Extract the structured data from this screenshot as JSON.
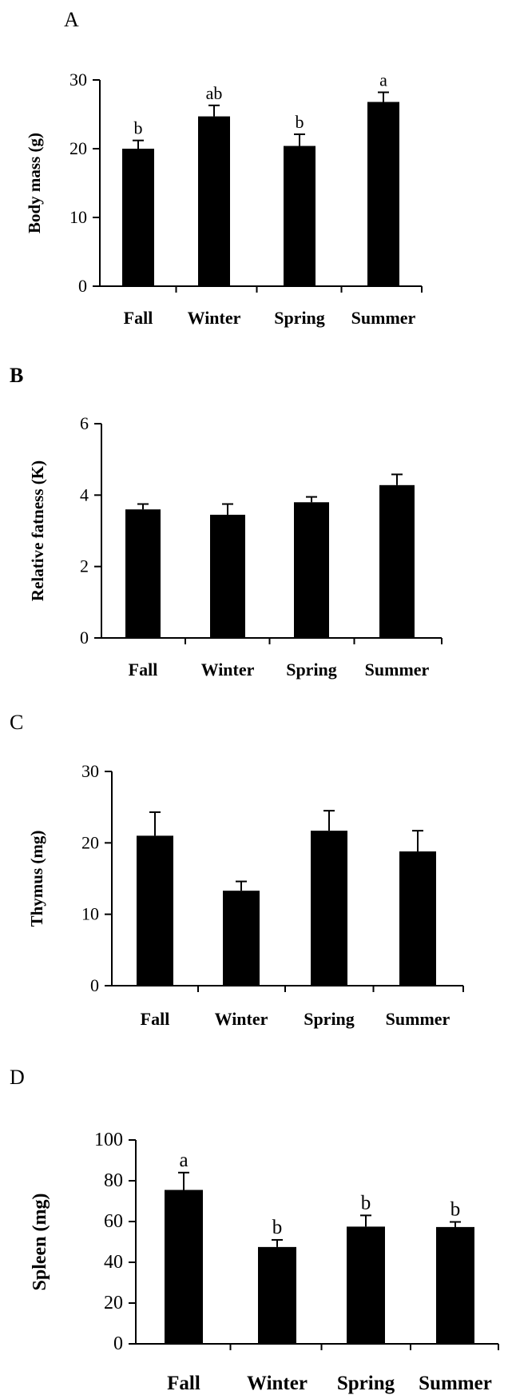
{
  "chart_data": [
    {
      "type": "bar",
      "panel_label": "A",
      "ylabel": "Body mass (g)",
      "categories": [
        "Fall",
        "Winter",
        "Spring",
        "Summer"
      ],
      "values": [
        20.0,
        24.7,
        20.4,
        26.8
      ],
      "errors": [
        1.2,
        1.6,
        1.7,
        1.4
      ],
      "significance": [
        "b",
        "ab",
        "b",
        "a"
      ],
      "ylim": [
        0,
        30
      ],
      "yticks": [
        0,
        10,
        20,
        30
      ]
    },
    {
      "type": "bar",
      "panel_label": "B",
      "ylabel": "Relative fatness (K)",
      "categories": [
        "Fall",
        "Winter",
        "Spring",
        "Summer"
      ],
      "values": [
        3.6,
        3.45,
        3.8,
        4.28
      ],
      "errors": [
        0.15,
        0.3,
        0.15,
        0.3
      ],
      "significance": [
        "",
        "",
        "",
        ""
      ],
      "ylim": [
        0,
        6
      ],
      "yticks": [
        0,
        2,
        4,
        6
      ]
    },
    {
      "type": "bar",
      "panel_label": "C",
      "ylabel": "Thymus (mg)",
      "categories": [
        "Fall",
        "Winter",
        "Spring",
        "Summer"
      ],
      "values": [
        21.0,
        13.3,
        21.7,
        18.8
      ],
      "errors": [
        3.3,
        1.3,
        2.8,
        2.9
      ],
      "significance": [
        "",
        "",
        "",
        ""
      ],
      "ylim": [
        0,
        30
      ],
      "yticks": [
        0,
        10,
        20,
        30
      ]
    },
    {
      "type": "bar",
      "panel_label": "D",
      "ylabel": "Spleen (mg)",
      "categories": [
        "Fall",
        "Winter",
        "Spring",
        "Summer"
      ],
      "values": [
        75.5,
        47.5,
        57.5,
        57.3
      ],
      "errors": [
        8.5,
        3.5,
        5.5,
        2.5
      ],
      "significance": [
        "a",
        "b",
        "b",
        "b"
      ],
      "ylim": [
        0,
        100
      ],
      "yticks": [
        0,
        20,
        40,
        60,
        80,
        100
      ]
    }
  ]
}
